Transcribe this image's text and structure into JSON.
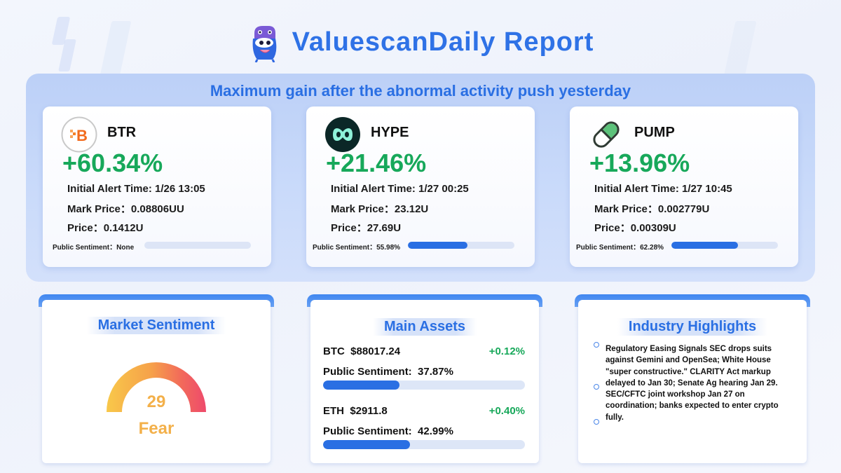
{
  "header": {
    "title": "ValuescanDaily Report"
  },
  "top_section": {
    "heading": "Maximum gain after the abnormal activity push yesterday",
    "coins": [
      {
        "name": "BTR",
        "gain": "+60.34%",
        "alert_label": "Initial Alert Time:",
        "alert_value": "1/26 13:05",
        "mark_label": "Mark Price：",
        "mark_value": "0.08806UU",
        "price_label": "Price：",
        "price_value": "0.1412U",
        "sentiment_label": "Public Sentiment：",
        "sentiment_value": "None",
        "sentiment_fraction": 0,
        "icon": "bitcoin-badge-icon",
        "color": "#f26b1d"
      },
      {
        "name": "HYPE",
        "gain": "+21.46%",
        "alert_label": "Initial Alert Time:",
        "alert_value": "1/27 00:25",
        "mark_label": "Mark Price：",
        "mark_value": "23.12U",
        "price_label": "Price：",
        "price_value": "27.69U",
        "sentiment_label": "Public Sentiment：",
        "sentiment_value": "55.98%",
        "sentiment_fraction": 0.5598,
        "icon": "hyperliquid-logo-icon",
        "color": "#0d2b2b"
      },
      {
        "name": "PUMP",
        "gain": "+13.96%",
        "alert_label": "Initial Alert Time:",
        "alert_value": "1/27 10:45",
        "mark_label": "Mark Price：",
        "mark_value": "0.002779U",
        "price_label": "Price：",
        "price_value": "0.00309U",
        "sentiment_label": "Public Sentiment：",
        "sentiment_value": "62.28%",
        "sentiment_fraction": 0.6228,
        "icon": "pill-capsule-icon",
        "color": "#5cc27a"
      }
    ]
  },
  "market_sentiment": {
    "title": "Market Sentiment",
    "value": "29",
    "label": "Fear",
    "gauge_value": 29,
    "gauge_max": 100
  },
  "main_assets": {
    "title": "Main Assets",
    "assets": [
      {
        "symbol": "BTC",
        "price": "$88017.24",
        "change": "+0.12%",
        "sentiment_label": "Public Sentiment:",
        "sentiment_value": "37.87%",
        "sentiment_fraction": 0.3787
      },
      {
        "symbol": "ETH",
        "price": "$2911.8",
        "change": "+0.40%",
        "sentiment_label": "Public Sentiment:",
        "sentiment_value": "42.99%",
        "sentiment_fraction": 0.4299
      }
    ]
  },
  "industry_highlights": {
    "title": "Industry Highlights",
    "text": "Regulatory Easing Signals SEC drops suits against Gemini and OpenSea; White House \"super constructive.\" CLARITY Act markup delayed to Jan 30; Senate Ag hearing Jan 29. SEC/CFTC joint workshop Jan 27 on coordination; banks expected to enter crypto fully."
  },
  "colors": {
    "accent": "#2f72e6",
    "gain": "#17a85a",
    "fear": "#f3b04a"
  }
}
